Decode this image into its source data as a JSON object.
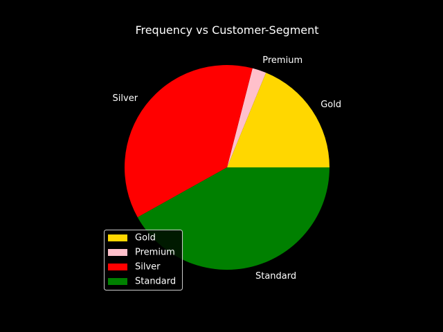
{
  "chart_data": {
    "type": "pie",
    "title": "Frequency vs Customer-Segment",
    "categories": [
      "Gold",
      "Premium",
      "Silver",
      "Standard"
    ],
    "values": [
      18.8,
      2.2,
      37.1,
      41.9
    ],
    "colors": [
      "#FFD700",
      "#FFC0CB",
      "#FF0000",
      "#008000"
    ],
    "start_angle_deg": 0,
    "direction": "counterclockwise",
    "legend": {
      "placement": "lower-left",
      "entries": [
        "Gold",
        "Premium",
        "Silver",
        "Standard"
      ]
    },
    "background": "#000000",
    "text_color": "#FFFFFF"
  }
}
